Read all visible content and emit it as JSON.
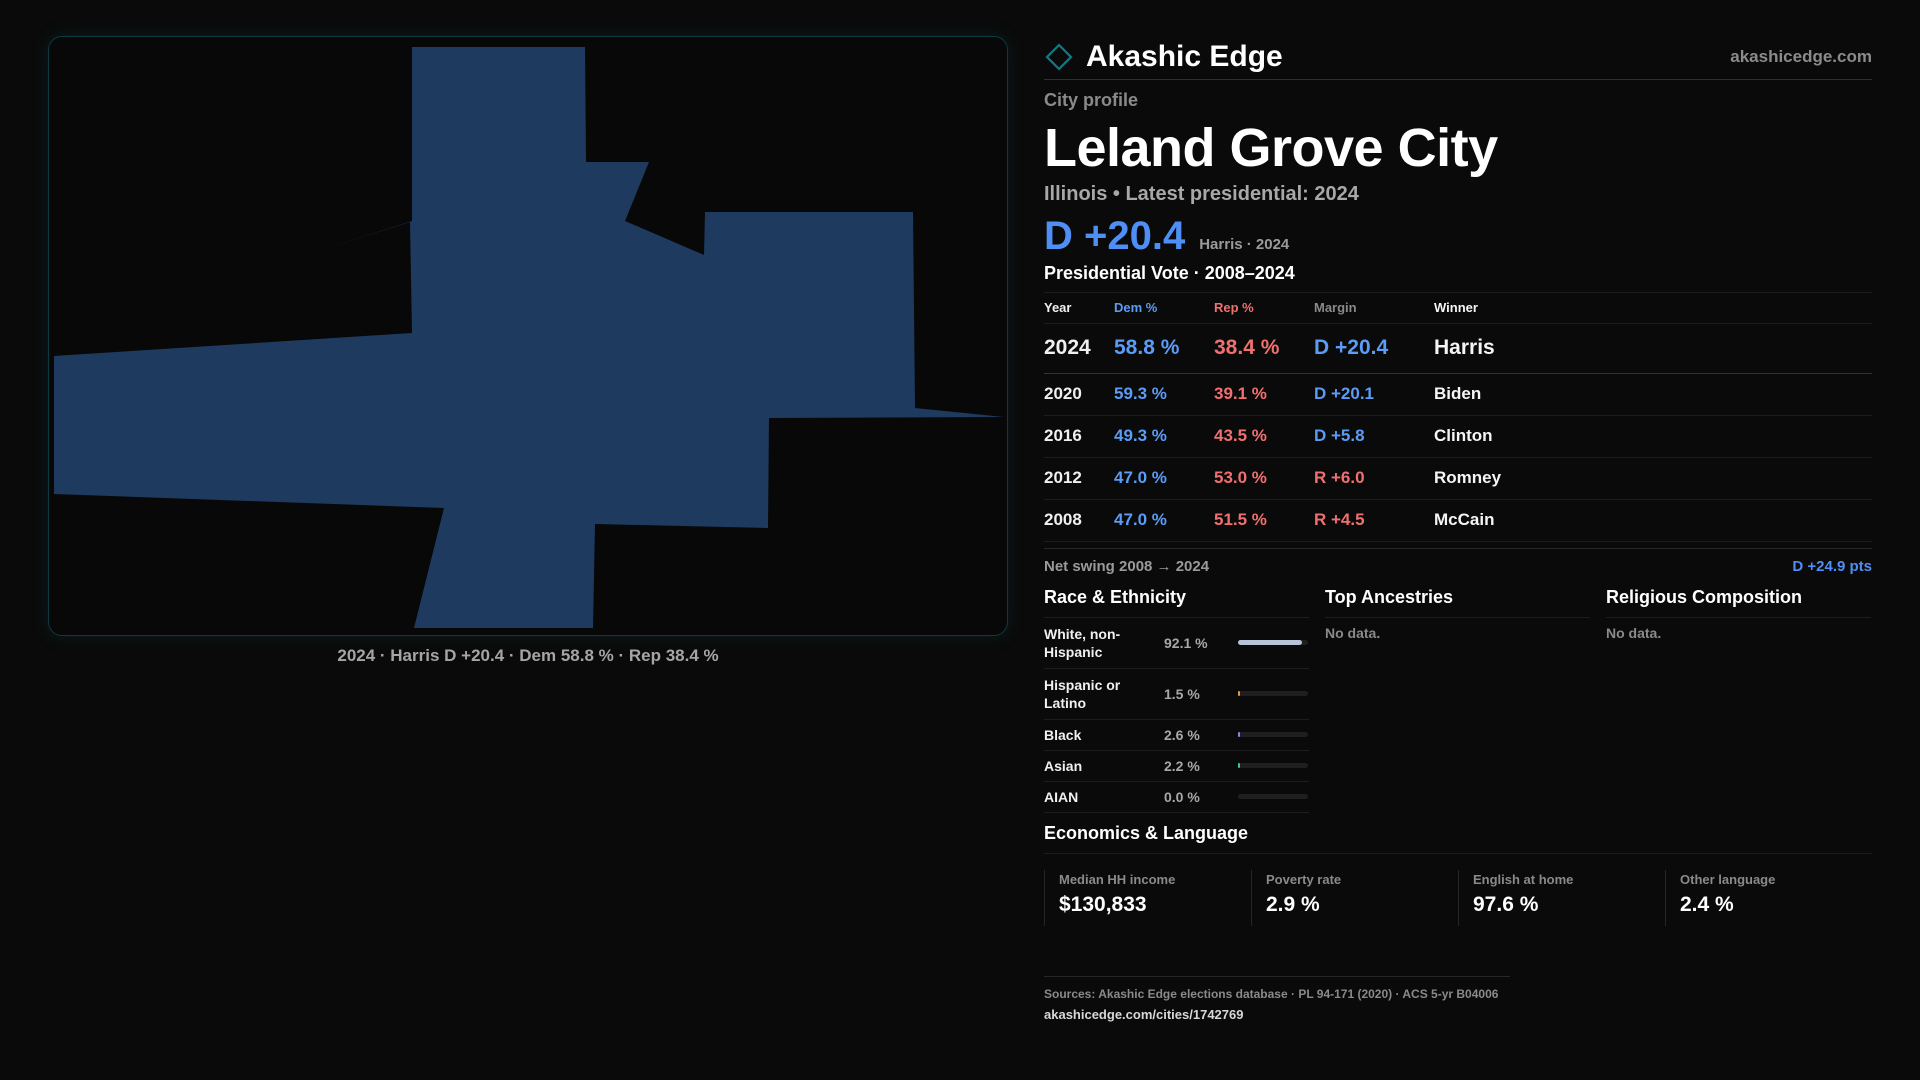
{
  "brand": {
    "name": "Akashic Edge",
    "url": "akashicedge.com",
    "logo_icon": "diamond-outline-icon",
    "accent_color": "#0f5a62"
  },
  "map": {
    "fill_color": "#1e3a5f",
    "caption": "2024 · Harris D +20.4 · Dem 58.8 % · Rep 38.4 %"
  },
  "profile": {
    "kicker": "City profile",
    "city": "Leland Grove City",
    "subtitle": "Illinois • Latest presidential: 2024",
    "headline_margin": "D +20.4",
    "headline_note": "Harris · 2024"
  },
  "vote": {
    "title": "Presidential Vote · 2008–2024",
    "columns": [
      "Year",
      "Dem %",
      "Rep %",
      "Margin",
      "Winner"
    ],
    "rows": [
      {
        "year": "2024",
        "dem": "58.8 %",
        "rep": "38.4 %",
        "margin": "D +20.4",
        "party": "D",
        "winner": "Harris"
      },
      {
        "year": "2020",
        "dem": "59.3 %",
        "rep": "39.1 %",
        "margin": "D +20.1",
        "party": "D",
        "winner": "Biden"
      },
      {
        "year": "2016",
        "dem": "49.3 %",
        "rep": "43.5 %",
        "margin": "D +5.8",
        "party": "D",
        "winner": "Clinton"
      },
      {
        "year": "2012",
        "dem": "47.0 %",
        "rep": "53.0 %",
        "margin": "R +6.0",
        "party": "R",
        "winner": "Romney"
      },
      {
        "year": "2008",
        "dem": "47.0 %",
        "rep": "51.5 %",
        "margin": "R +4.5",
        "party": "R",
        "winner": "McCain"
      }
    ],
    "swing_label": "Net swing 2008 → 2024",
    "swing_value": "D +24.9 pts"
  },
  "demographics": {
    "race_title": "Race & Ethnicity",
    "race": [
      {
        "label": "White, non-Hispanic",
        "pct": "92.1 %",
        "fraction": 0.921,
        "color": "#b8c4d6"
      },
      {
        "label": "Hispanic or Latino",
        "pct": "1.5 %",
        "fraction": 0.015,
        "color": "#e39a3b"
      },
      {
        "label": "Black",
        "pct": "2.6 %",
        "fraction": 0.026,
        "color": "#9a7cf0"
      },
      {
        "label": "Asian",
        "pct": "2.2 %",
        "fraction": 0.022,
        "color": "#3fc59a"
      },
      {
        "label": "AIAN",
        "pct": "0.0 %",
        "fraction": 0.0,
        "color": "#d07070"
      }
    ],
    "ancestry_title": "Top Ancestries",
    "ancestry_empty": "No data.",
    "religion_title": "Religious Composition",
    "religion_empty": "No data."
  },
  "economics": {
    "title": "Economics & Language",
    "cards": [
      {
        "label": "Median HH income",
        "value": "$130,833"
      },
      {
        "label": "Poverty rate",
        "value": "2.9 %"
      },
      {
        "label": "English at home",
        "value": "97.6 %"
      },
      {
        "label": "Other language",
        "value": "2.4 %"
      }
    ]
  },
  "footer": {
    "sources": "Sources: Akashic Edge elections database · PL 94-171 (2020) · ACS 5-yr B04006",
    "url": "akashicedge.com/cities/1742769"
  }
}
